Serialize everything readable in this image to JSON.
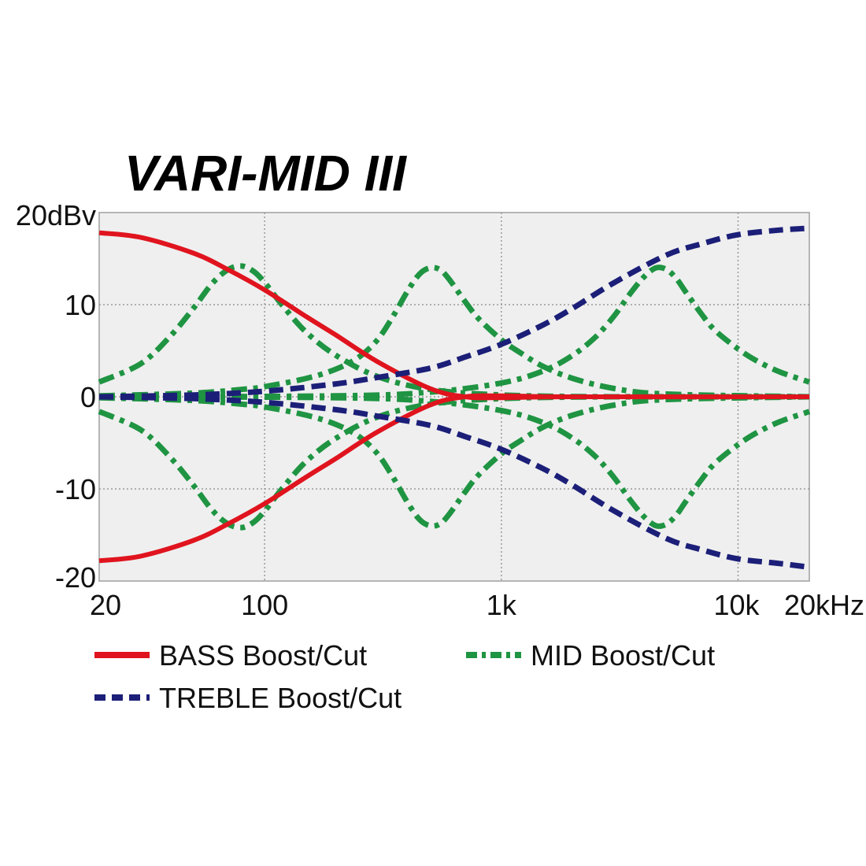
{
  "chart_data": {
    "type": "line",
    "title": "VARI-MID III",
    "x_scale": "log",
    "xlim": [
      20,
      20000
    ],
    "ylim": [
      -20,
      20
    ],
    "grid": true,
    "x_ticks": [
      {
        "value": 20,
        "label": "20"
      },
      {
        "value": 100,
        "label": "100"
      },
      {
        "value": 1000,
        "label": "1k"
      },
      {
        "value": 10000,
        "label": "10k"
      },
      {
        "value": 20000,
        "label": "20kHz"
      }
    ],
    "y_ticks": [
      {
        "value": 20,
        "label": "20dBv"
      },
      {
        "value": 10,
        "label": "10"
      },
      {
        "value": 0,
        "label": "0"
      },
      {
        "value": -10,
        "label": "-10"
      },
      {
        "value": -20,
        "label": "-20"
      }
    ],
    "legend_placement": "bottom",
    "series": [
      {
        "name": "BASS Boost/Cut",
        "color": "#e0141e",
        "style": "solid",
        "curves": [
          {
            "x": [
              20,
              30,
              50,
              70,
              100,
              150,
              200,
              300,
              500,
              700,
              1000,
              2000,
              20000
            ],
            "y": [
              17.8,
              17.3,
              15.6,
              13.8,
              11.6,
              8.7,
              6.7,
              3.8,
              0.9,
              0.0,
              -0.1,
              0,
              0
            ]
          },
          {
            "x": [
              20,
              30,
              50,
              70,
              100,
              150,
              200,
              300,
              500,
              700,
              1000,
              2000,
              20000
            ],
            "y": [
              -17.8,
              -17.3,
              -15.6,
              -13.8,
              -11.6,
              -8.7,
              -6.7,
              -3.8,
              -0.9,
              0.0,
              0.1,
              0,
              0
            ]
          }
        ]
      },
      {
        "name": "TREBLE Boost/Cut",
        "color": "#1c1f78",
        "style": "dashed",
        "curves": [
          {
            "x": [
              20,
              50,
              100,
              200,
              300,
              500,
              700,
              1000,
              1500,
              2000,
              3000,
              5000,
              7000,
              10000,
              15000,
              20000
            ],
            "y": [
              0,
              0.2,
              0.6,
              1.4,
              2.1,
              3.1,
              4.3,
              5.7,
              7.8,
              9.6,
              12.4,
              15.4,
              16.6,
              17.6,
              18.1,
              18.3
            ]
          },
          {
            "x": [
              20,
              50,
              100,
              200,
              300,
              500,
              700,
              1000,
              1500,
              2000,
              3000,
              5000,
              7000,
              10000,
              15000,
              20000
            ],
            "y": [
              0,
              -0.2,
              -0.6,
              -1.4,
              -2.1,
              -3.1,
              -4.3,
              -5.7,
              -7.8,
              -9.6,
              -12.4,
              -15.4,
              -16.6,
              -17.6,
              -18.1,
              -18.5
            ]
          }
        ]
      },
      {
        "name": "MID Boost/Cut",
        "color": "#1f9442",
        "style": "dashdot",
        "curves": [
          {
            "x": [
              20,
              30,
              40,
              50,
              60,
              70,
              80,
              90,
              100,
              120,
              150,
              200,
              300,
              500,
              1000,
              3000,
              20000
            ],
            "y": [
              1.6,
              3.6,
              6.6,
              9.6,
              12.3,
              13.8,
              14.2,
              13.6,
              12.4,
              9.8,
              7.0,
              4.5,
              2.2,
              0.8,
              0.2,
              0,
              0
            ]
          },
          {
            "x": [
              20,
              30,
              40,
              50,
              60,
              70,
              80,
              90,
              100,
              120,
              150,
              200,
              300,
              500,
              1000,
              3000,
              20000
            ],
            "y": [
              -1.6,
              -3.6,
              -6.6,
              -9.6,
              -12.3,
              -13.8,
              -14.2,
              -13.6,
              -12.4,
              -9.8,
              -7.0,
              -4.5,
              -2.2,
              -0.8,
              -0.2,
              0,
              0
            ]
          },
          {
            "x": [
              20,
              50,
              80,
              100,
              150,
              200,
              250,
              300,
              350,
              400,
              450,
              500,
              550,
              600,
              700,
              800,
              1000,
              1200,
              1500,
              2000,
              3000,
              5000,
              20000
            ],
            "y": [
              0.1,
              0.4,
              0.8,
              1.1,
              2.0,
              3.0,
              4.3,
              6.2,
              8.8,
              11.4,
              13.3,
              14.0,
              13.8,
              12.8,
              10.4,
              8.5,
              6.2,
              4.8,
              3.3,
              2.0,
              0.9,
              0.3,
              0
            ]
          },
          {
            "x": [
              20,
              50,
              80,
              100,
              150,
              200,
              250,
              300,
              350,
              400,
              450,
              500,
              550,
              600,
              700,
              800,
              1000,
              1200,
              1500,
              2000,
              3000,
              5000,
              20000
            ],
            "y": [
              -0.1,
              -0.4,
              -0.8,
              -1.1,
              -2.0,
              -3.0,
              -4.3,
              -6.2,
              -8.8,
              -11.4,
              -13.3,
              -14.0,
              -13.8,
              -12.8,
              -10.4,
              -8.5,
              -6.2,
              -4.8,
              -3.3,
              -2.0,
              -0.9,
              -0.3,
              0
            ]
          },
          {
            "x": [
              20,
              200,
              500,
              1000,
              1500,
              2000,
              2500,
              3000,
              3500,
              4000,
              4500,
              5000,
              5500,
              6000,
              7000,
              8000,
              10000,
              12000,
              15000,
              20000
            ],
            "y": [
              0,
              0.1,
              0.5,
              1.5,
              2.8,
              4.5,
              6.5,
              8.8,
              11.2,
              13.0,
              14.0,
              13.8,
              12.8,
              11.4,
              9.0,
              7.2,
              5.2,
              3.9,
              2.7,
              1.6
            ]
          },
          {
            "x": [
              20,
              200,
              500,
              1000,
              1500,
              2000,
              2500,
              3000,
              3500,
              4000,
              4500,
              5000,
              5500,
              6000,
              7000,
              8000,
              10000,
              12000,
              15000,
              20000
            ],
            "y": [
              0,
              -0.1,
              -0.5,
              -1.5,
              -2.8,
              -4.5,
              -6.5,
              -8.8,
              -11.2,
              -13.0,
              -14.0,
              -13.8,
              -12.8,
              -11.4,
              -9.0,
              -7.2,
              -5.2,
              -3.9,
              -2.7,
              -1.6
            ]
          }
        ]
      }
    ]
  }
}
